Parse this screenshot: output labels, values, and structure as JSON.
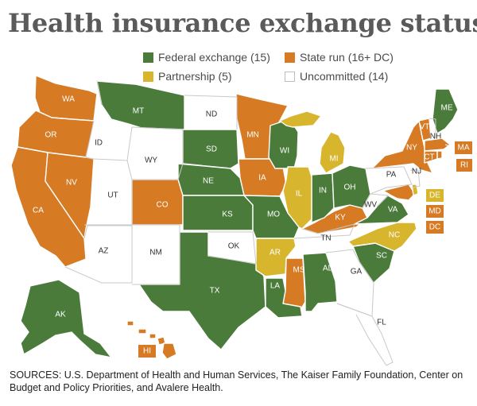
{
  "title": "Health insurance exchange status",
  "colors": {
    "federal": "#4a7b3a",
    "state": "#d67a24",
    "partnership": "#d7b62e",
    "uncommitted": "#ffffff",
    "uncommitted_stroke": "#c9c9c9"
  },
  "legend": {
    "federal": "Federal exchange (15)",
    "state": "State run (16+ DC)",
    "partnership": "Partnership (5)",
    "uncommitted": "Uncommitted (14)"
  },
  "states": {
    "WA": "federal_or_state_placeholder"
  },
  "labels": {
    "WA": "WA",
    "OR": "OR",
    "CA": "CA",
    "NV": "NV",
    "ID": "ID",
    "MT": "MT",
    "WY": "WY",
    "UT": "UT",
    "CO": "CO",
    "AZ": "AZ",
    "NM": "NM",
    "ND": "ND",
    "SD": "SD",
    "NE": "NE",
    "KS": "KS",
    "OK": "OK",
    "TX": "TX",
    "MN": "MN",
    "IA": "IA",
    "MO": "MO",
    "AR": "AR",
    "LA": "LA",
    "WI": "WI",
    "IL": "IL",
    "MI": "MI",
    "IN": "IN",
    "OH": "OH",
    "KY": "KY",
    "TN": "TN",
    "MS": "MS",
    "AL": "AL",
    "GA": "GA",
    "FL": "FL",
    "SC": "SC",
    "NC": "NC",
    "VA": "VA",
    "WV": "WV",
    "PA": "PA",
    "NY": "NY",
    "VT": "VT",
    "NH": "NH",
    "ME": "ME",
    "MA": "MA",
    "RI": "RI",
    "CT": "CT",
    "NJ": "NJ",
    "DE": "DE",
    "MD": "MD",
    "DC": "DC",
    "AK": "AK",
    "HI": "HI"
  },
  "sources": "SOURCES: U.S. Department of Health and Human Services, The Kaiser Family Foundation, Center on Budget and Policy Priorities, and Avalere Health."
}
